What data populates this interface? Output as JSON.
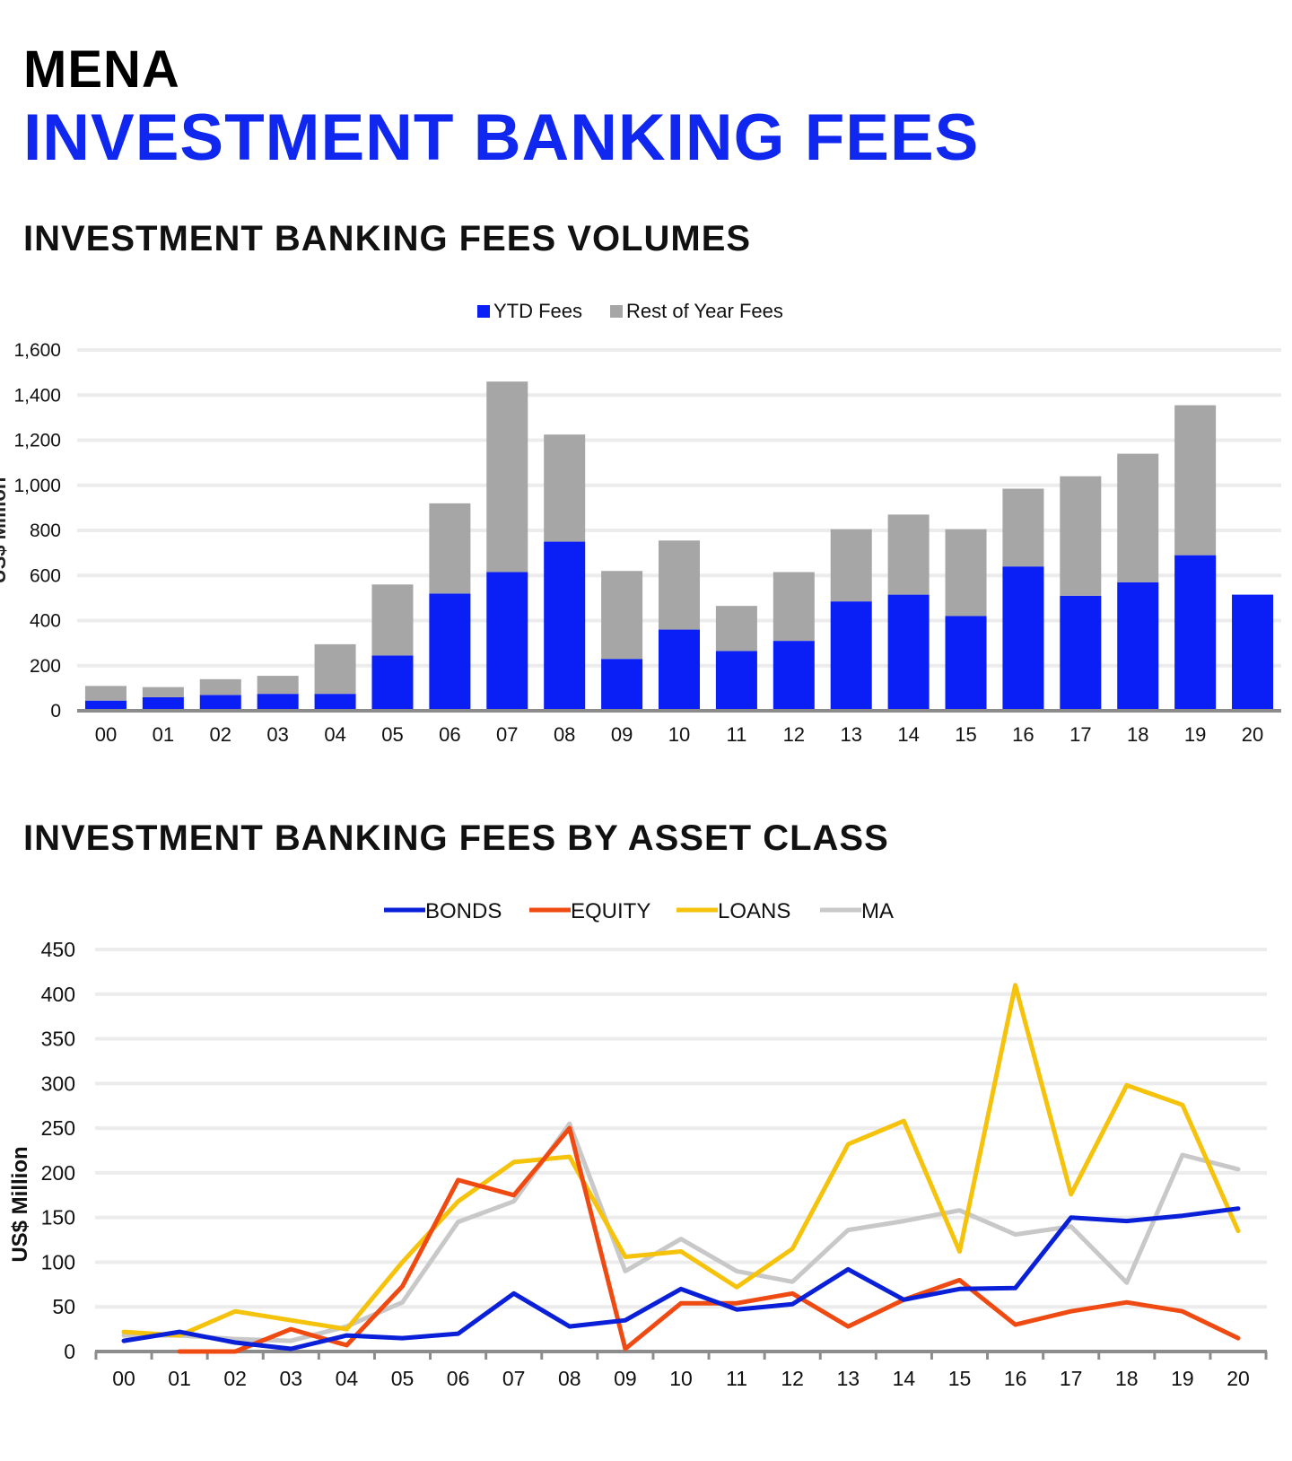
{
  "header": {
    "region": "MENA",
    "title": "INVESTMENT BANKING FEES"
  },
  "chart1_title": "INVESTMENT BANKING FEES VOLUMES",
  "chart2_title": "INVESTMENT BANKING FEES BY ASSET CLASS",
  "chart_data": [
    {
      "type": "bar",
      "stacked": true,
      "title": "INVESTMENT BANKING FEES VOLUMES",
      "categories": [
        "00",
        "01",
        "02",
        "03",
        "04",
        "05",
        "06",
        "07",
        "08",
        "09",
        "10",
        "11",
        "12",
        "13",
        "14",
        "15",
        "16",
        "17",
        "18",
        "19",
        "20"
      ],
      "series": [
        {
          "name": "YTD Fees",
          "color": "#0a1ff5",
          "values": [
            45,
            60,
            70,
            75,
            75,
            245,
            520,
            615,
            750,
            230,
            360,
            265,
            310,
            485,
            515,
            420,
            640,
            510,
            570,
            690,
            515
          ]
        },
        {
          "name": "Rest of Year Fees",
          "color": "#a6a6a6",
          "values": [
            65,
            45,
            70,
            80,
            220,
            315,
            400,
            845,
            475,
            390,
            395,
            200,
            305,
            320,
            355,
            385,
            345,
            530,
            570,
            665,
            0
          ]
        }
      ],
      "ylim": [
        0,
        1600
      ],
      "yticks": [
        "0",
        "200",
        "400",
        "600",
        "800",
        "1,000",
        "1,200",
        "1,400",
        "1,600"
      ],
      "ylabel": "US$ Million",
      "grid": true,
      "legend": "top-center"
    },
    {
      "type": "line",
      "title": "INVESTMENT BANKING FEES BY ASSET CLASS",
      "categories": [
        "00",
        "01",
        "02",
        "03",
        "04",
        "05",
        "06",
        "07",
        "08",
        "09",
        "10",
        "11",
        "12",
        "13",
        "14",
        "15",
        "16",
        "17",
        "18",
        "19",
        "20"
      ],
      "series": [
        {
          "name": "BONDS",
          "color": "#0a1fd8",
          "values": [
            12,
            22,
            10,
            3,
            18,
            15,
            20,
            65,
            28,
            35,
            70,
            47,
            53,
            92,
            58,
            70,
            71,
            150,
            146,
            152,
            160
          ]
        },
        {
          "name": "EQUITY",
          "color": "#ef4a12",
          "values": [
            null,
            0,
            0,
            25,
            7,
            73,
            192,
            175,
            250,
            3,
            54,
            54,
            65,
            28,
            58,
            80,
            30,
            45,
            55,
            45,
            15
          ]
        },
        {
          "name": "LOANS",
          "color": "#f5c20c",
          "values": [
            22,
            18,
            45,
            35,
            25,
            100,
            168,
            212,
            218,
            106,
            112,
            72,
            115,
            232,
            258,
            112,
            410,
            176,
            298,
            276,
            135
          ]
        },
        {
          "name": "MA",
          "color": "#c8c8c8",
          "values": [
            18,
            18,
            14,
            12,
            28,
            55,
            145,
            168,
            255,
            90,
            126,
            90,
            78,
            136,
            146,
            158,
            131,
            140,
            77,
            220,
            204
          ]
        }
      ],
      "ylim": [
        0,
        450
      ],
      "yticks": [
        "0",
        "50",
        "100",
        "150",
        "200",
        "250",
        "300",
        "350",
        "400",
        "450"
      ],
      "ylabel": "US$ Million",
      "grid": true,
      "legend": "top-center"
    }
  ]
}
